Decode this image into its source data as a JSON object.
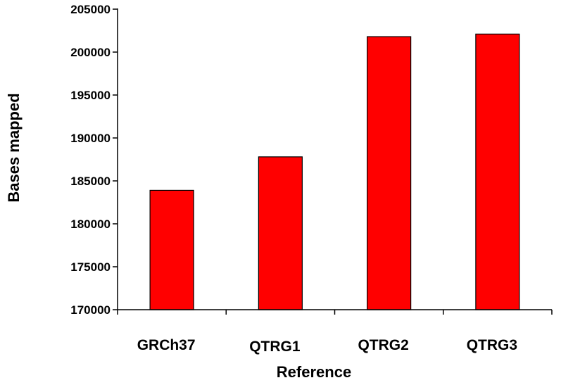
{
  "chart_data": {
    "type": "bar",
    "title": "",
    "xlabel": "Reference",
    "ylabel": "Bases mapped",
    "categories": [
      "GRCh37",
      "QTRG1",
      "QTRG2",
      "QTRG3"
    ],
    "values": [
      183900,
      187800,
      201800,
      202100
    ],
    "ylim": [
      170000,
      205000
    ],
    "yticks": [
      170000,
      175000,
      180000,
      185000,
      190000,
      195000,
      200000,
      205000
    ],
    "ytick_labels": [
      "170000",
      "175000",
      "180000",
      "185000",
      "190000",
      "195000",
      "200000",
      "205000"
    ],
    "bar_color": "#ff0000",
    "bar_edge_color": "#000000",
    "grid": false,
    "legend": "none"
  }
}
